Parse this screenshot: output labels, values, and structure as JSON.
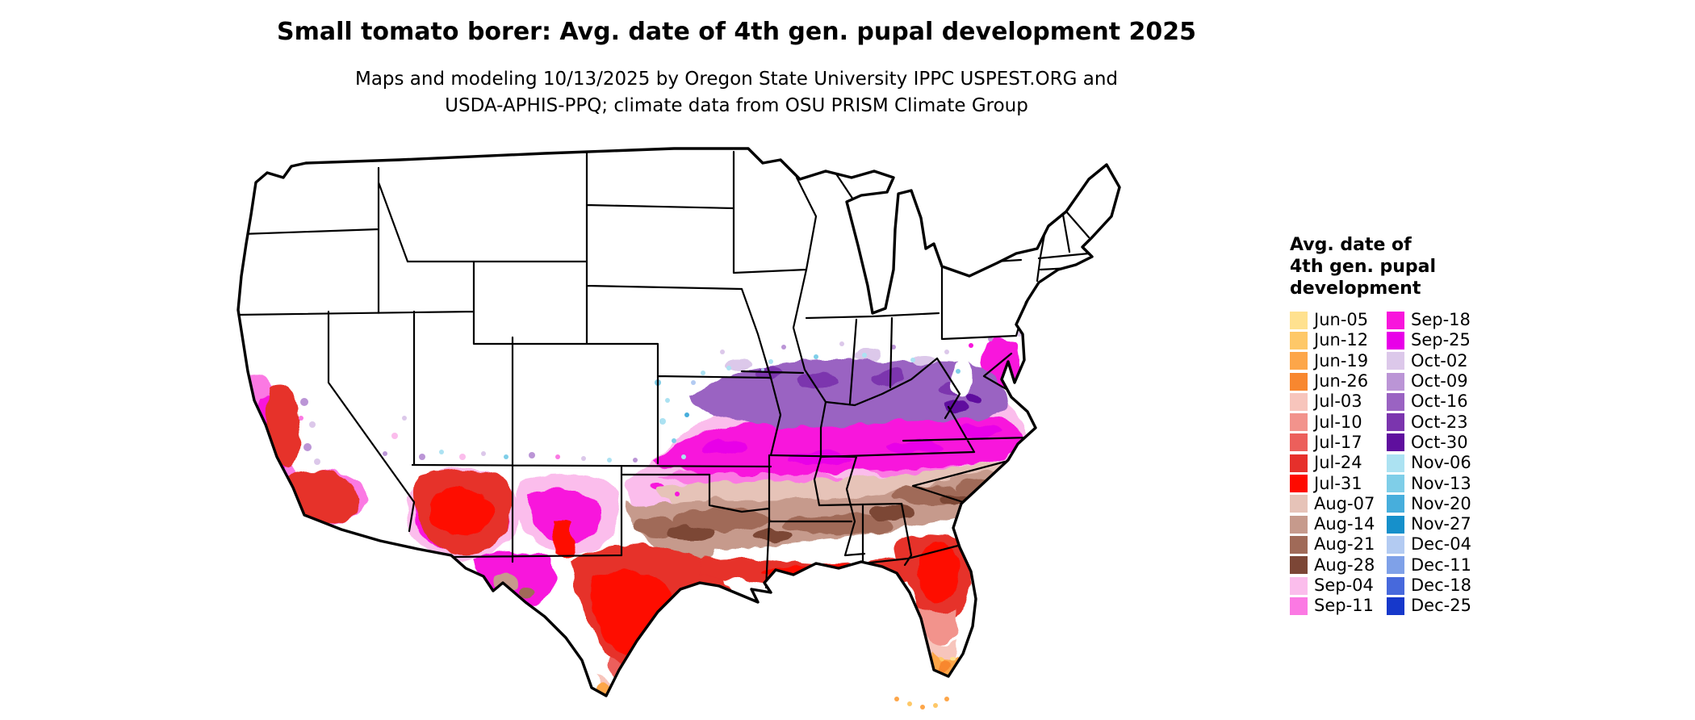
{
  "header": {
    "title": "Small tomato borer: Avg. date of 4th gen. pupal development 2025",
    "subtitle_lines": [
      "Maps and modeling 10/13/2025 by Oregon State University IPPC USPEST.ORG and",
      "USDA-APHIS-PPQ; climate data from OSU PRISM Climate Group"
    ]
  },
  "legend": {
    "title_lines": [
      "Avg. date of",
      "4th gen. pupal",
      "development"
    ],
    "columns": [
      {
        "entries": [
          {
            "label": "Jun-05",
            "color": "#FFE18F"
          },
          {
            "label": "Jun-12",
            "color": "#FEC868"
          },
          {
            "label": "Jun-19",
            "color": "#FDA649"
          },
          {
            "label": "Jun-26",
            "color": "#F8872F"
          },
          {
            "label": "Jul-03",
            "color": "#F7C5BC"
          },
          {
            "label": "Jul-10",
            "color": "#F2938C"
          },
          {
            "label": "Jul-17",
            "color": "#EC5F5B"
          },
          {
            "label": "Jul-24",
            "color": "#E6302B"
          },
          {
            "label": "Jul-31",
            "color": "#FE0A00"
          },
          {
            "label": "Aug-07",
            "color": "#E6C3B8"
          },
          {
            "label": "Aug-14",
            "color": "#C69A8C"
          },
          {
            "label": "Aug-21",
            "color": "#A06A58"
          },
          {
            "label": "Aug-28",
            "color": "#7C4636"
          },
          {
            "label": "Sep-04",
            "color": "#FBBDEC"
          },
          {
            "label": "Sep-11",
            "color": "#FB79E3"
          }
        ]
      },
      {
        "entries": [
          {
            "label": "Sep-18",
            "color": "#F815DC"
          },
          {
            "label": "Sep-25",
            "color": "#E800E8"
          },
          {
            "label": "Oct-02",
            "color": "#DCC8EA"
          },
          {
            "label": "Oct-09",
            "color": "#BB95D6"
          },
          {
            "label": "Oct-16",
            "color": "#9A63C2"
          },
          {
            "label": "Oct-23",
            "color": "#7B35AE"
          },
          {
            "label": "Oct-30",
            "color": "#5F0F9E"
          },
          {
            "label": "Nov-06",
            "color": "#ACE2F2"
          },
          {
            "label": "Nov-13",
            "color": "#7FCEE8"
          },
          {
            "label": "Nov-20",
            "color": "#47AEDC"
          },
          {
            "label": "Nov-27",
            "color": "#1690CB"
          },
          {
            "label": "Dec-04",
            "color": "#B3CBF2"
          },
          {
            "label": "Dec-11",
            "color": "#7FA1E8"
          },
          {
            "label": "Dec-18",
            "color": "#4769DC"
          },
          {
            "label": "Dec-25",
            "color": "#1638CB"
          }
        ]
      }
    ]
  },
  "map": {
    "region": "Contiguous United States"
  }
}
